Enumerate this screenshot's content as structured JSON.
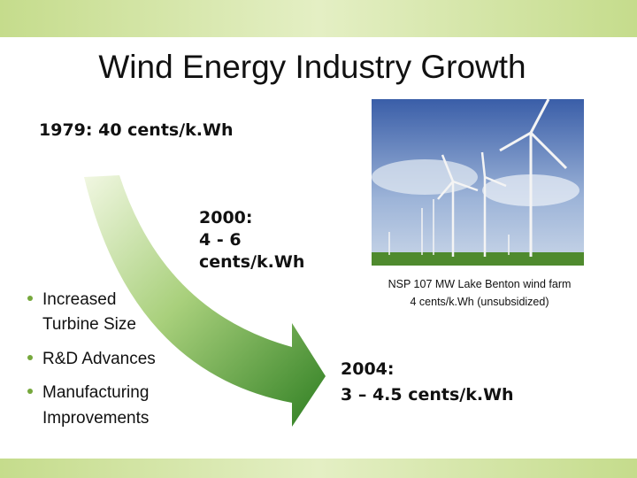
{
  "title": "Wind Energy Industry Growth",
  "milestones": [
    {
      "lines": [
        "1979: 40 cents/k.Wh"
      ]
    },
    {
      "lines": [
        "2000:",
        "4 - 6",
        "cents/k.Wh"
      ]
    },
    {
      "lines": [
        "2004:",
        "3 – 4.5 cents/k.Wh"
      ]
    }
  ],
  "bullets": [
    [
      "Increased",
      "Turbine Size"
    ],
    [
      "R&D Advances"
    ],
    [
      "Manufacturing",
      "Improvements"
    ]
  ],
  "photo_caption": [
    "NSP 107 MW Lake Benton wind farm",
    "4 cents/k.Wh (unsubsidized)"
  ]
}
